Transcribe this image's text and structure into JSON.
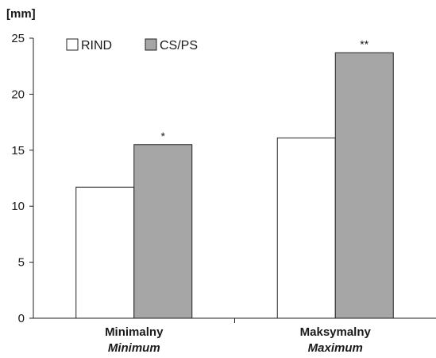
{
  "chart_data": {
    "type": "bar",
    "unit_label": "[mm]",
    "categories": [
      {
        "label": "Minimalny",
        "sublabel": "Minimum"
      },
      {
        "label": "Maksymalny",
        "sublabel": "Maximum"
      }
    ],
    "series": [
      {
        "name": "RIND",
        "values": [
          11.7,
          16.1
        ],
        "color": "#ffffff"
      },
      {
        "name": "CS/PS",
        "values": [
          15.5,
          23.7
        ],
        "color": "#a6a6a6"
      }
    ],
    "significance": [
      {
        "category": 0,
        "series": 1,
        "label": "*"
      },
      {
        "category": 1,
        "series": 1,
        "label": "**"
      }
    ],
    "ylim": [
      0,
      25
    ],
    "yticks": [
      0,
      5,
      10,
      15,
      20,
      25
    ],
    "grid": false,
    "legend_position": "top-left"
  }
}
